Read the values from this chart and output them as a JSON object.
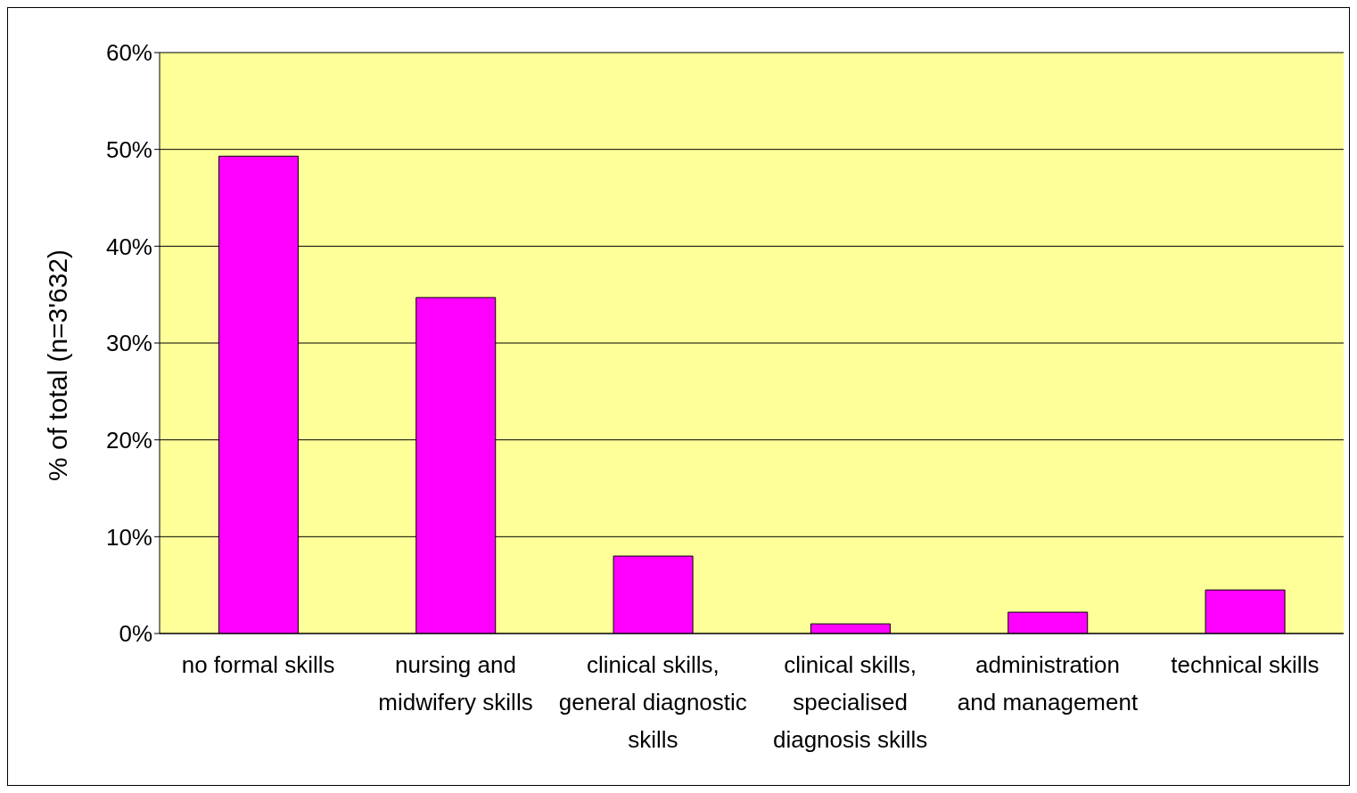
{
  "chart_data": {
    "type": "bar",
    "ylabel": "% of total (n=3'632)",
    "categories": [
      "no formal skills",
      "nursing and midwifery skills",
      "clinical skills, general diagnostic skills",
      "clinical skills, specialised diagnosis skills",
      "administration and management",
      "technical skills"
    ],
    "values": [
      49.3,
      34.7,
      8.0,
      1.0,
      2.2,
      4.5
    ],
    "color": "#ff00ff",
    "ylim": [
      0,
      60
    ],
    "yticks": [
      {
        "value": 0,
        "label": "0%"
      },
      {
        "value": 10,
        "label": "10%"
      },
      {
        "value": 20,
        "label": "20%"
      },
      {
        "value": 30,
        "label": "30%"
      },
      {
        "value": 40,
        "label": "40%"
      },
      {
        "value": 50,
        "label": "50%"
      },
      {
        "value": 60,
        "label": "60%"
      }
    ],
    "grid": "y",
    "legend": false
  }
}
